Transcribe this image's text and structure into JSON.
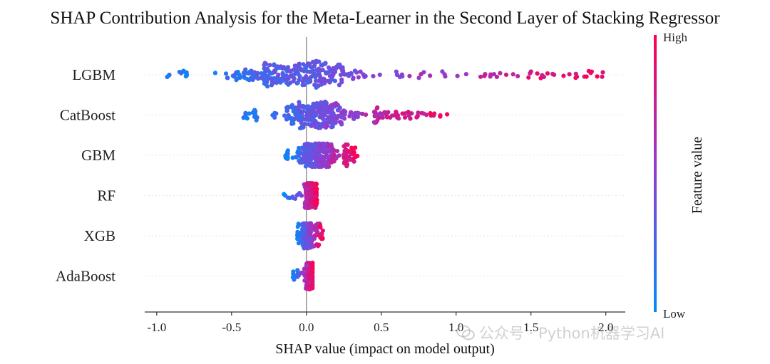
{
  "chart_data": {
    "type": "scatter",
    "subtype": "shap-beeswarm",
    "title": "SHAP Contribution Analysis for the Meta-Learner in the Second Layer of Stacking Regressor",
    "xlabel": "SHAP value (impact on model output)",
    "xlim": [
      -1.08,
      2.13
    ],
    "xticks": [
      -1.0,
      -0.5,
      0.0,
      0.5,
      1.0,
      1.5,
      2.0
    ],
    "xtick_labels": [
      "-1.0",
      "-0.5",
      "0.0",
      "0.5",
      "1.0",
      "1.5",
      "2.0"
    ],
    "features": [
      {
        "name": "LGBM",
        "min": -0.93,
        "max": 1.98,
        "core": [
          -0.7,
          0.6
        ],
        "spread": 1.0
      },
      {
        "name": "CatBoost",
        "min": -0.42,
        "max": 0.94,
        "core": [
          -0.32,
          0.45
        ],
        "spread": 0.85
      },
      {
        "name": "GBM",
        "min": -0.14,
        "max": 0.34,
        "core": [
          -0.12,
          0.25
        ],
        "spread": 0.75
      },
      {
        "name": "RF",
        "min": -0.15,
        "max": 0.07,
        "core": [
          -0.02,
          0.06
        ],
        "spread": 0.8
      },
      {
        "name": "XGB",
        "min": -0.06,
        "max": 0.11,
        "core": [
          -0.05,
          0.05
        ],
        "spread": 0.8
      },
      {
        "name": "AdaBoost",
        "min": -0.09,
        "max": 0.04,
        "core": [
          -0.01,
          0.04
        ],
        "spread": 0.85
      }
    ],
    "colorbar": {
      "label": "Feature value",
      "high": "High",
      "low": "Low",
      "low_color": "#008bfb",
      "mid_color": "#8b3fd6",
      "high_color": "#ff0051"
    }
  },
  "watermark": {
    "text": "公众号 · Python机器学习AI",
    "icon": "wechat-icon"
  }
}
